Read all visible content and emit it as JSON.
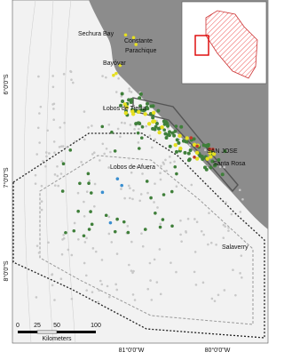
{
  "places": [
    "Sechura Bay",
    "Constante",
    "Parachique",
    "Bayóvar",
    "Lobos de Tierra",
    "SAN JOSE",
    "Santa Rosa",
    "Lobos de Afuera",
    "Salaverry"
  ],
  "latitude_labels": [
    "6°0'0\"S",
    "7°0'0\"S",
    "8°0'0\"S"
  ],
  "longitude_labels": [
    "81°0'0\"W",
    "80°0'0\"W"
  ],
  "scale_bar": {
    "ticks": [
      "0",
      "25",
      "50",
      "100"
    ],
    "unit": "Kilometers"
  }
}
